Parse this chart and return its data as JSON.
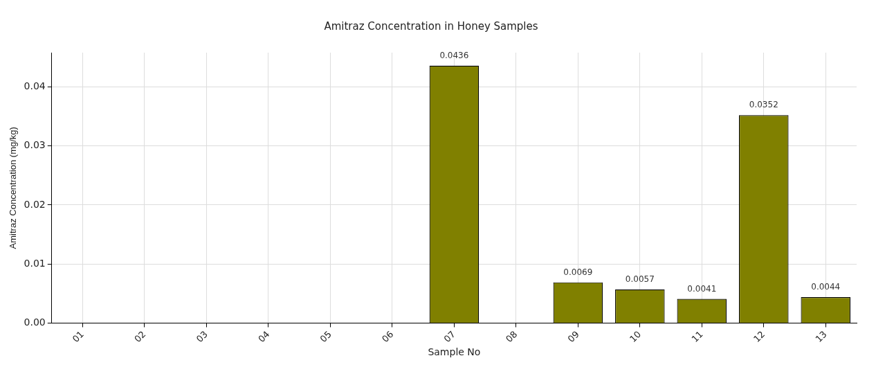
{
  "chart_data": {
    "type": "bar",
    "title": "Amitraz Concentration in Honey Samples",
    "xlabel": "Sample No",
    "ylabel": "Amitraz Concentration (mg/kg)",
    "categories": [
      "01",
      "02",
      "03",
      "04",
      "05",
      "06",
      "07",
      "08",
      "09",
      "10",
      "11",
      "12",
      "13"
    ],
    "values": [
      null,
      null,
      null,
      null,
      null,
      null,
      0.0436,
      null,
      0.0069,
      0.0057,
      0.0041,
      0.0352,
      0.0044
    ],
    "color": "#808000",
    "data_labels": true,
    "grid": true,
    "legend": false,
    "ylim": [
      0,
      0.0458
    ],
    "yticks": [
      {
        "value": 0,
        "label": "0.00"
      },
      {
        "value": 0.01,
        "label": "0.01"
      },
      {
        "value": 0.02,
        "label": "0.02"
      },
      {
        "value": 0.03,
        "label": "0.03"
      },
      {
        "value": 0.04,
        "label": "0.04"
      }
    ]
  }
}
